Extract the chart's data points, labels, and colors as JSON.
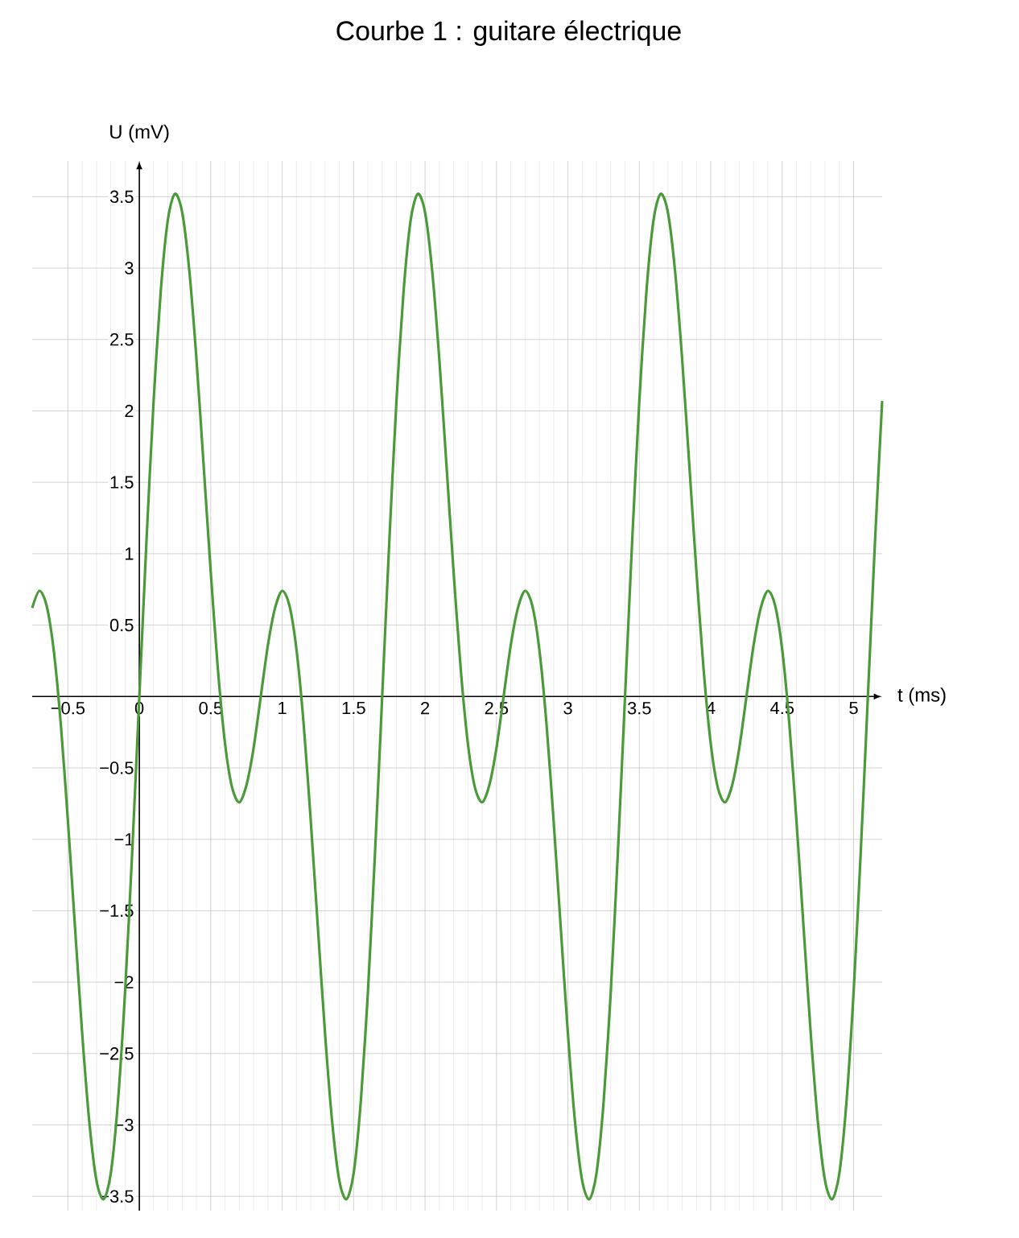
{
  "chart_data": {
    "type": "line",
    "title": "Courbe 1 : guitare électrique",
    "xlabel": "t (ms)",
    "ylabel": "U (mV)",
    "x": [
      -0.75,
      -0.7,
      -0.65,
      -0.6,
      -0.55,
      -0.5,
      -0.45,
      -0.4,
      -0.35,
      -0.3,
      -0.25,
      -0.2,
      -0.15,
      -0.1,
      -0.05,
      0,
      0.05,
      0.1,
      0.15,
      0.2,
      0.25,
      0.3,
      0.35,
      0.4,
      0.45,
      0.5,
      0.55,
      0.6,
      0.65,
      0.7,
      0.75,
      0.8,
      0.85,
      0.9,
      0.95,
      1,
      1.05,
      1.1,
      1.15,
      1.2,
      1.25,
      1.3,
      1.35,
      1.4,
      1.45,
      1.5,
      1.55,
      1.6,
      1.65,
      1.7,
      1.75,
      1.8,
      1.85,
      1.9,
      1.95,
      2,
      2.05,
      2.1,
      2.15,
      2.2,
      2.25,
      2.3,
      2.35,
      2.4,
      2.45,
      2.5,
      2.55,
      2.6,
      2.65,
      2.7,
      2.75,
      2.8,
      2.85,
      2.9,
      2.95,
      3,
      3.05,
      3.1,
      3.15,
      3.2,
      3.25,
      3.3,
      3.35,
      3.4,
      3.45,
      3.5,
      3.55,
      3.6,
      3.65,
      3.7,
      3.75,
      3.8,
      3.85,
      3.9,
      3.95,
      4,
      4.05,
      4.1,
      4.15,
      4.2,
      4.25,
      4.3,
      4.35,
      4.4,
      4.45,
      4.5,
      4.55,
      4.6,
      4.65,
      4.7,
      4.75,
      4.8,
      4.85,
      4.9,
      4.95,
      5,
      5.05,
      5.1,
      5.15,
      5.2
    ],
    "series": [
      {
        "color": "#4a9a3a",
        "values": [
          0.62,
          0.74,
          0.64,
          0.33,
          -0.19,
          -0.87,
          -1.62,
          -2.36,
          -2.98,
          -3.39,
          -3.52,
          -3.34,
          -2.84,
          -2.07,
          -1.09,
          0,
          1.09,
          2.07,
          2.84,
          3.34,
          3.52,
          3.39,
          2.98,
          2.36,
          1.62,
          0.87,
          0.19,
          -0.33,
          -0.64,
          -0.74,
          -0.62,
          -0.36,
          0,
          0.36,
          0.62,
          0.74,
          0.64,
          0.33,
          -0.19,
          -0.87,
          -1.62,
          -2.36,
          -2.98,
          -3.39,
          -3.52,
          -3.34,
          -2.84,
          -2.07,
          -1.09,
          0,
          1.09,
          2.07,
          2.84,
          3.34,
          3.52,
          3.39,
          2.98,
          2.36,
          1.62,
          0.87,
          0.19,
          -0.33,
          -0.64,
          -0.74,
          -0.62,
          -0.36,
          0,
          0.36,
          0.62,
          0.74,
          0.64,
          0.33,
          -0.19,
          -0.87,
          -1.62,
          -2.36,
          -2.98,
          -3.39,
          -3.52,
          -3.34,
          -2.84,
          -2.07,
          -1.09,
          0,
          1.09,
          2.07,
          2.84,
          3.34,
          3.52,
          3.39,
          2.98,
          2.36,
          1.62,
          0.87,
          0.19,
          -0.33,
          -0.64,
          -0.74,
          -0.62,
          -0.36,
          0,
          0.36,
          0.62,
          0.74,
          0.64,
          0.33,
          -0.19,
          -0.87,
          -1.62,
          -2.36,
          -2.98,
          -3.39,
          -3.52,
          -3.34,
          -2.84,
          -2.07,
          -1.09,
          0,
          1.09,
          2.07
        ]
      }
    ],
    "xlim": [
      -0.75,
      5.2
    ],
    "ylim": [
      -3.6,
      3.75
    ],
    "xticks": [
      {
        "value": -0.5,
        "label": "−0.5"
      },
      0,
      0.5,
      1,
      1.5,
      2,
      2.5,
      3,
      3.5,
      4,
      4.5,
      5
    ],
    "yticks": [
      {
        "value": -3.5,
        "label": "−3.5"
      },
      {
        "value": -3,
        "label": "−3"
      },
      {
        "value": -2.5,
        "label": "−2.5"
      },
      {
        "value": -2,
        "label": "−2"
      },
      {
        "value": -1.5,
        "label": "−1.5"
      },
      {
        "value": -1,
        "label": "−1"
      },
      {
        "value": -0.5,
        "label": "−0.5"
      },
      0.5,
      1,
      1.5,
      2,
      2.5,
      3,
      3.5
    ],
    "grid": true,
    "line_style": "solid"
  }
}
